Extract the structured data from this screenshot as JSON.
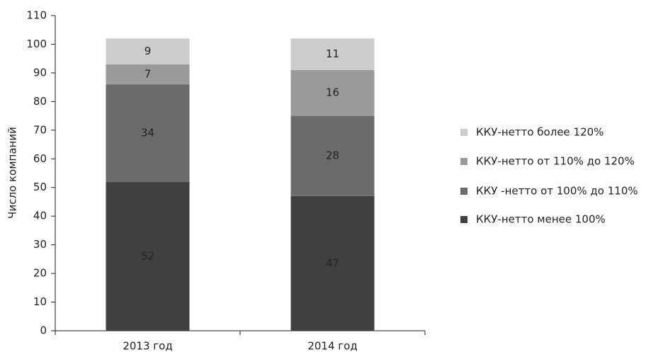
{
  "chart_data": {
    "type": "stacked_bar",
    "y_label": "Число компаний",
    "categories": [
      "2013 год",
      "2014 год"
    ],
    "series": [
      {
        "name": "ККУ-нетто менее 100%",
        "color": "#404040",
        "values": [
          52,
          47
        ]
      },
      {
        "name": "ККУ -нетто от 100% до 110%",
        "color": "#6b6b6b",
        "values": [
          34,
          28
        ]
      },
      {
        "name": "ККУ-нетто от 110% до 120%",
        "color": "#9a9a9a",
        "values": [
          7,
          16
        ]
      },
      {
        "name": "ККУ-нетто более 120%",
        "color": "#cccccc",
        "values": [
          9,
          11
        ]
      }
    ],
    "ylim": [
      0,
      110
    ],
    "yticks": [
      0,
      10,
      20,
      30,
      40,
      50,
      60,
      70,
      80,
      90,
      100,
      110
    ],
    "legend": "right"
  }
}
